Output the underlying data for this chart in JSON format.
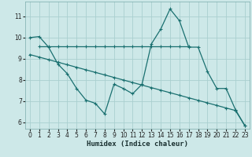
{
  "xlabel": "Humidex (Indice chaleur)",
  "background_color": "#cde8e8",
  "grid_color": "#aacfcf",
  "line_color": "#1a7070",
  "xlim": [
    -0.5,
    23.5
  ],
  "ylim": [
    5.7,
    11.7
  ],
  "yticks": [
    6,
    7,
    8,
    9,
    10,
    11
  ],
  "xticks": [
    0,
    1,
    2,
    3,
    4,
    5,
    6,
    7,
    8,
    9,
    10,
    11,
    12,
    13,
    14,
    15,
    16,
    17,
    18,
    19,
    20,
    21,
    22,
    23
  ],
  "series1": {
    "x": [
      0,
      1,
      2,
      3,
      4,
      5,
      6,
      7,
      8,
      9,
      10,
      11,
      12,
      13,
      14,
      15,
      16,
      17,
      18,
      19,
      20,
      21,
      22,
      23
    ],
    "y": [
      10.0,
      10.05,
      9.55,
      8.75,
      8.3,
      7.6,
      7.05,
      6.9,
      6.4,
      7.8,
      7.6,
      7.35,
      7.8,
      9.7,
      10.4,
      11.35,
      10.8,
      9.55,
      9.55,
      8.4,
      7.6,
      7.6,
      6.6,
      5.85
    ]
  },
  "series2": {
    "x": [
      1,
      2,
      3,
      4,
      5,
      6,
      7,
      8,
      9,
      10,
      11,
      12,
      13,
      14,
      15,
      16,
      17
    ],
    "y": [
      9.6,
      9.6,
      9.6,
      9.6,
      9.6,
      9.6,
      9.6,
      9.6,
      9.6,
      9.6,
      9.6,
      9.6,
      9.6,
      9.6,
      9.6,
      9.6,
      9.6
    ]
  },
  "series3": {
    "x": [
      0,
      1,
      2,
      3,
      4,
      5,
      6,
      7,
      8,
      9,
      10,
      11,
      12,
      13,
      14,
      15,
      16,
      17,
      18,
      19,
      20,
      21,
      22,
      23
    ],
    "y": [
      9.2,
      9.08,
      8.96,
      8.84,
      8.72,
      8.6,
      8.48,
      8.36,
      8.24,
      8.12,
      8.0,
      7.88,
      7.76,
      7.64,
      7.52,
      7.4,
      7.28,
      7.16,
      7.04,
      6.92,
      6.8,
      6.68,
      6.56,
      5.85
    ]
  }
}
